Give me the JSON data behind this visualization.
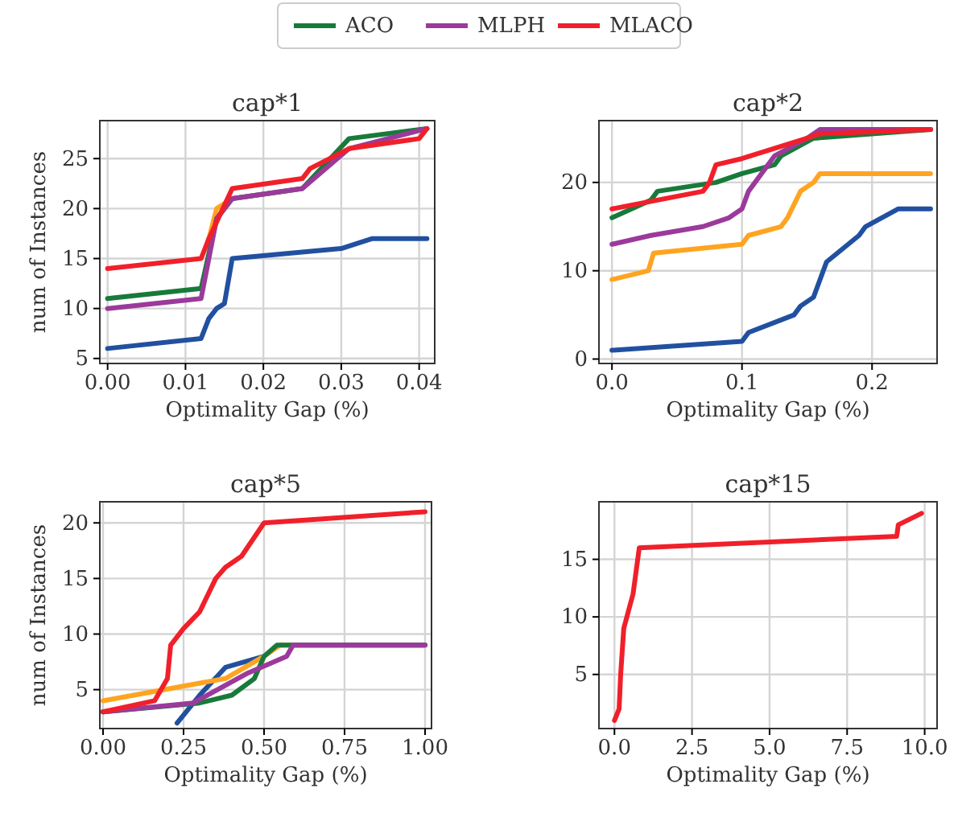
{
  "chart_data": [
    {
      "type": "line",
      "title": "cap*1",
      "xlabel": "Optimality Gap (%)",
      "ylabel": "num of Instances",
      "grid": true,
      "legend": "top",
      "xlim": [
        -0.001,
        0.042
      ],
      "ylim": [
        4.5,
        28.8
      ],
      "xticks": [
        {
          "value": 0,
          "label": "0.00"
        },
        {
          "value": 0.01,
          "label": "0.01"
        },
        {
          "value": 0.02,
          "label": "0.02"
        },
        {
          "value": 0.03,
          "label": "0.03"
        },
        {
          "value": 0.04,
          "label": "0.04"
        }
      ],
      "yticks": [
        5,
        10,
        15,
        20,
        25
      ],
      "series": [
        {
          "color": "#2150a0",
          "x": [
            0,
            0.012,
            0.013,
            0.014,
            0.015,
            0.016,
            0.03,
            0.034,
            0.041
          ],
          "values": [
            6,
            7,
            9,
            10,
            10.5,
            15,
            16,
            17,
            17
          ]
        },
        {
          "color": "#ffa421",
          "x": [
            0.013,
            0.014,
            0.016
          ],
          "values": [
            17,
            20,
            21
          ]
        },
        {
          "name": "ACO",
          "color": "#187a3a",
          "x": [
            0,
            0.012,
            0.014,
            0.016,
            0.025,
            0.031,
            0.041
          ],
          "values": [
            11,
            12,
            19,
            21,
            22,
            27,
            28
          ]
        },
        {
          "name": "MLPH",
          "color": "#9b3a9b",
          "x": [
            0,
            0.012,
            0.013,
            0.014,
            0.016,
            0.025,
            0.031,
            0.041
          ],
          "values": [
            10,
            11,
            15,
            19,
            21,
            22,
            26,
            28
          ]
        },
        {
          "name": "MLACO",
          "color": "#f0202a",
          "x": [
            0,
            0.012,
            0.013,
            0.016,
            0.025,
            0.026,
            0.031,
            0.04,
            0.041
          ],
          "values": [
            14,
            15,
            17,
            22,
            23,
            24,
            26,
            27,
            28
          ]
        }
      ]
    },
    {
      "type": "line",
      "title": "cap*2",
      "xlabel": "Optimality Gap (%)",
      "grid": true,
      "xlim": [
        -0.01,
        0.25
      ],
      "ylim": [
        -0.5,
        27
      ],
      "xticks": [
        {
          "value": 0,
          "label": "0.0"
        },
        {
          "value": 0.1,
          "label": "0.1"
        },
        {
          "value": 0.2,
          "label": "0.2"
        }
      ],
      "yticks": [
        0,
        10,
        20
      ],
      "series": [
        {
          "color": "#2150a0",
          "x": [
            0,
            0.1,
            0.105,
            0.14,
            0.145,
            0.155,
            0.165,
            0.19,
            0.195,
            0.22,
            0.245
          ],
          "values": [
            1,
            2,
            3,
            5,
            6,
            7,
            11,
            14,
            15,
            17,
            17
          ]
        },
        {
          "color": "#ffa421",
          "x": [
            0,
            0.028,
            0.032,
            0.1,
            0.105,
            0.13,
            0.135,
            0.145,
            0.155,
            0.16,
            0.245
          ],
          "values": [
            9,
            10,
            12,
            13,
            14,
            15,
            16,
            19,
            20,
            21,
            21
          ]
        },
        {
          "color": "#187a3a",
          "x": [
            0,
            0.03,
            0.035,
            0.08,
            0.1,
            0.125,
            0.13,
            0.155,
            0.245
          ],
          "values": [
            16,
            18,
            19,
            20,
            21,
            22,
            23,
            25,
            26
          ]
        },
        {
          "color": "#9b3a9b",
          "x": [
            0,
            0.03,
            0.07,
            0.09,
            0.1,
            0.105,
            0.125,
            0.15,
            0.16,
            0.245
          ],
          "values": [
            13,
            14,
            15,
            16,
            17,
            19,
            23,
            25,
            26,
            26
          ]
        },
        {
          "color": "#f0202a",
          "x": [
            0,
            0.07,
            0.075,
            0.08,
            0.1,
            0.15,
            0.16,
            0.245
          ],
          "values": [
            17,
            19,
            20,
            22,
            22.7,
            25,
            25.5,
            26
          ]
        }
      ]
    },
    {
      "type": "line",
      "title": "cap*5",
      "xlabel": "Optimality Gap (%)",
      "ylabel": "num of Instances",
      "grid": true,
      "xlim": [
        -0.01,
        1.02
      ],
      "ylim": [
        1.5,
        21.9
      ],
      "xticks": [
        {
          "value": 0,
          "label": "0.00"
        },
        {
          "value": 0.25,
          "label": "0.25"
        },
        {
          "value": 0.5,
          "label": "0.50"
        },
        {
          "value": 0.75,
          "label": "0.75"
        },
        {
          "value": 1,
          "label": "1.00"
        }
      ],
      "yticks": [
        5,
        10,
        15,
        20
      ],
      "series": [
        {
          "color": "#2150a0",
          "x": [
            0.23,
            0.3,
            0.38,
            0.5
          ],
          "values": [
            2,
            4.5,
            7,
            8
          ]
        },
        {
          "color": "#ffa421",
          "x": [
            0,
            0.38,
            0.5,
            0.55,
            1
          ],
          "values": [
            4,
            6,
            8,
            9,
            9
          ]
        },
        {
          "color": "#187a3a",
          "x": [
            0,
            0.3,
            0.4,
            0.47,
            0.5,
            0.54,
            1
          ],
          "values": [
            3,
            3.8,
            4.5,
            6,
            8,
            9,
            9
          ]
        },
        {
          "color": "#9b3a9b",
          "x": [
            0,
            0.28,
            0.45,
            0.57,
            0.59,
            1
          ],
          "values": [
            3,
            3.8,
            6.5,
            8,
            9,
            9
          ]
        },
        {
          "color": "#f0202a",
          "x": [
            0,
            0.16,
            0.2,
            0.21,
            0.25,
            0.3,
            0.35,
            0.38,
            0.43,
            0.5,
            1
          ],
          "values": [
            3,
            4,
            6,
            9,
            10.5,
            12,
            15,
            16,
            17,
            20,
            21
          ]
        }
      ]
    },
    {
      "type": "line",
      "title": "cap*15",
      "xlabel": "Optimality Gap (%)",
      "grid": true,
      "xlim": [
        -0.5,
        10.4
      ],
      "ylim": [
        0.3,
        20
      ],
      "xticks": [
        {
          "value": 0,
          "label": "0.0"
        },
        {
          "value": 2.5,
          "label": "2.5"
        },
        {
          "value": 5,
          "label": "5.0"
        },
        {
          "value": 7.5,
          "label": "7.5"
        },
        {
          "value": 10,
          "label": "10.0"
        }
      ],
      "yticks": [
        5,
        10,
        15
      ],
      "series": [
        {
          "color": "#f0202a",
          "x": [
            0,
            0.15,
            0.2,
            0.3,
            0.5,
            0.6,
            0.8,
            9.1,
            9.15,
            9.9
          ],
          "values": [
            1,
            2,
            5,
            9,
            11,
            12,
            16,
            17,
            18,
            19
          ]
        }
      ]
    }
  ]
}
